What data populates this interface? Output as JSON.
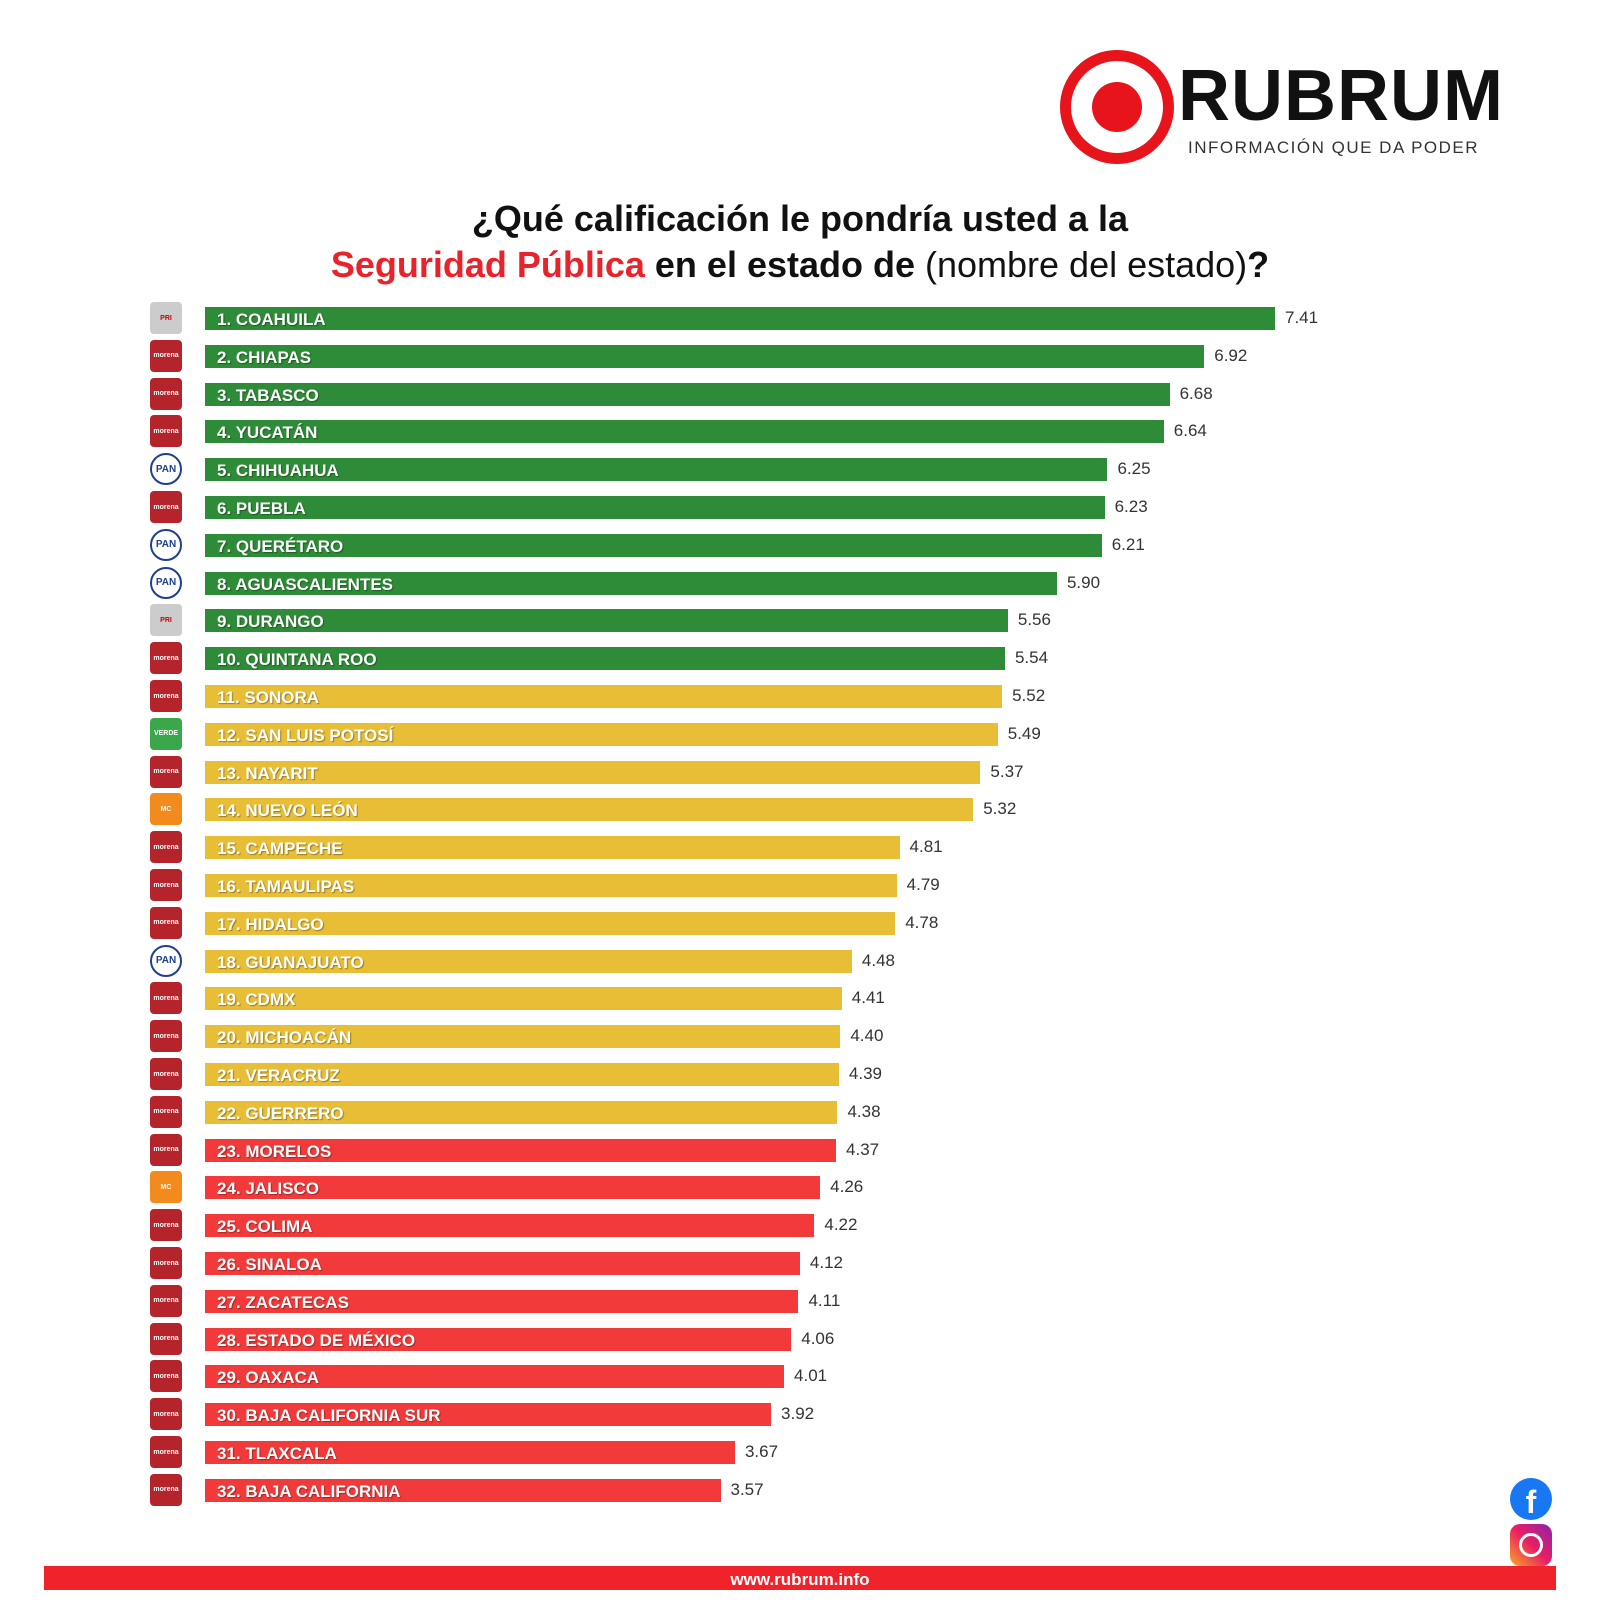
{
  "brand": {
    "name": "RUBRUM",
    "tagline": "INFORMACIÓN QUE DA PODER",
    "url": "www.rubrum.info"
  },
  "colors": {
    "high": "#2e8b37",
    "mid": "#e8be37",
    "low": "#f33a3a",
    "morena": "#b5242b",
    "pan": "#1f3f8f",
    "pri": "#cccccc",
    "verde": "#3aa74a",
    "mc": "#f28a1d"
  },
  "chart_data": {
    "type": "bar",
    "orientation": "horizontal",
    "title_line1": "¿Qué calificación le pondría usted a la",
    "title_highlight": "Seguridad Pública",
    "title_rest": " en el estado de ",
    "title_tail": "(nombre del estado)",
    "title_end": "?",
    "xlim": [
      0,
      7.41
    ],
    "categories": [
      "1. COAHUILA",
      "2. CHIAPAS",
      "3. TABASCO",
      "4. YUCATÁN",
      "5. CHIHUAHUA",
      "6. PUEBLA",
      "7. QUERÉTARO",
      "8. AGUASCALIENTES",
      "9. DURANGO",
      "10. QUINTANA ROO",
      "11. SONORA",
      "12. SAN LUIS POTOSÍ",
      "13. NAYARIT",
      "14. NUEVO LEÓN",
      "15. CAMPECHE",
      "16. TAMAULIPAS",
      "17. HIDALGO",
      "18. GUANAJUATO",
      "19. CDMX",
      "20. MICHOACÁN",
      "21. VERACRUZ",
      "22. GUERRERO",
      "23. MORELOS",
      "24. JALISCO",
      "25. COLIMA",
      "26. SINALOA",
      "27. ZACATECAS",
      "28. ESTADO DE MÉXICO",
      "29. OAXACA",
      "30. BAJA CALIFORNIA SUR",
      "31. TLAXCALA",
      "32. BAJA CALIFORNIA"
    ],
    "values": [
      7.41,
      6.92,
      6.68,
      6.64,
      6.25,
      6.23,
      6.21,
      5.9,
      5.56,
      5.54,
      5.52,
      5.49,
      5.37,
      5.32,
      4.81,
      4.79,
      4.78,
      4.48,
      4.41,
      4.4,
      4.39,
      4.38,
      4.37,
      4.26,
      4.22,
      4.12,
      4.11,
      4.06,
      4.01,
      3.92,
      3.67,
      3.57
    ],
    "value_labels": [
      "7.41",
      "6.92",
      "6.68",
      "6.64",
      "6.25",
      "6.23",
      "6.21",
      "5.90",
      "5.56",
      "5.54",
      "5.52",
      "5.49",
      "5.37",
      "5.32",
      "4.81",
      "4.79",
      "4.78",
      "4.48",
      "4.41",
      "4.40",
      "4.39",
      "4.38",
      "4.37",
      "4.26",
      "4.22",
      "4.12",
      "4.11",
      "4.06",
      "4.01",
      "3.92",
      "3.67",
      "3.57"
    ],
    "tiers": [
      "high",
      "high",
      "high",
      "high",
      "high",
      "high",
      "high",
      "high",
      "high",
      "high",
      "mid",
      "mid",
      "mid",
      "mid",
      "mid",
      "mid",
      "mid",
      "mid",
      "mid",
      "mid",
      "mid",
      "mid",
      "low",
      "low",
      "low",
      "low",
      "low",
      "low",
      "low",
      "low",
      "low",
      "low"
    ],
    "parties": [
      "pri",
      "morena",
      "morena",
      "morena",
      "pan",
      "morena",
      "pan",
      "pan",
      "pri",
      "morena",
      "morena",
      "verde",
      "morena",
      "mc",
      "morena",
      "morena",
      "morena",
      "pan",
      "morena",
      "morena",
      "morena",
      "morena",
      "morena",
      "mc",
      "morena",
      "morena",
      "morena",
      "morena",
      "morena",
      "morena",
      "morena",
      "morena"
    ]
  },
  "party_logo_text": {
    "pri": "PRI",
    "morena": "morena",
    "pan": "PAN",
    "verde": "VERDE",
    "mc": "MC"
  },
  "social": {
    "facebook": "facebook-icon",
    "instagram": "instagram-icon"
  }
}
